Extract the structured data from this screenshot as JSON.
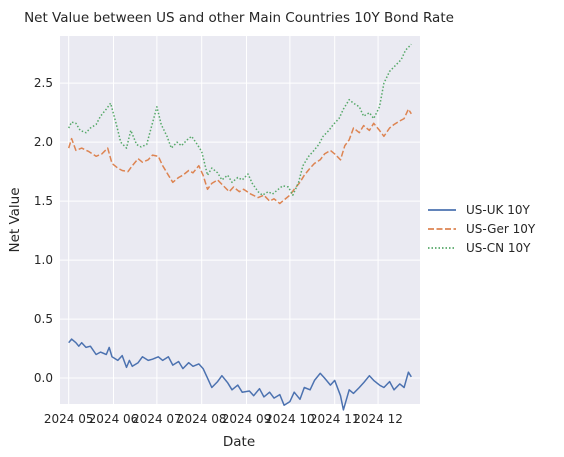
{
  "chart_data": {
    "type": "line",
    "title": "Net Value between US and other Main Countries 10Y Bond Rate",
    "xlabel": "Date",
    "ylabel": "Net Value",
    "x_tick_labels": [
      "2024 05",
      "2024 06",
      "2024 07",
      "2024 08",
      "2024 09",
      "2024 10",
      "2024 11",
      "2024 12"
    ],
    "x_tick_dates": [
      "2024-05-01",
      "2024-06-01",
      "2024-07-01",
      "2024-08-01",
      "2024-09-01",
      "2024-10-01",
      "2024-11-01",
      "2024-12-01"
    ],
    "y_tick_labels": [
      "0.0",
      "0.5",
      "1.0",
      "1.5",
      "2.0",
      "2.5"
    ],
    "y_ticks": [
      0.0,
      0.5,
      1.0,
      1.5,
      2.0,
      2.5
    ],
    "xlim": [
      "2024-04-25",
      "2024-12-30"
    ],
    "ylim": [
      -0.22,
      2.9
    ],
    "grid": true,
    "legend_position": "right",
    "background": "#eaeaf2",
    "series": [
      {
        "name": "US-UK 10Y",
        "color": "#4c72b0",
        "dash": "solid",
        "points": [
          [
            "2024-05-01",
            0.3
          ],
          [
            "2024-05-03",
            0.33
          ],
          [
            "2024-05-06",
            0.3
          ],
          [
            "2024-05-08",
            0.27
          ],
          [
            "2024-05-10",
            0.3
          ],
          [
            "2024-05-13",
            0.26
          ],
          [
            "2024-05-16",
            0.27
          ],
          [
            "2024-05-20",
            0.2
          ],
          [
            "2024-05-23",
            0.22
          ],
          [
            "2024-05-27",
            0.2
          ],
          [
            "2024-05-29",
            0.26
          ],
          [
            "2024-05-31",
            0.18
          ],
          [
            "2024-06-04",
            0.15
          ],
          [
            "2024-06-07",
            0.19
          ],
          [
            "2024-06-10",
            0.09
          ],
          [
            "2024-06-12",
            0.15
          ],
          [
            "2024-06-14",
            0.1
          ],
          [
            "2024-06-18",
            0.13
          ],
          [
            "2024-06-21",
            0.18
          ],
          [
            "2024-06-25",
            0.15
          ],
          [
            "2024-06-28",
            0.16
          ],
          [
            "2024-07-02",
            0.18
          ],
          [
            "2024-07-05",
            0.15
          ],
          [
            "2024-07-09",
            0.18
          ],
          [
            "2024-07-12",
            0.11
          ],
          [
            "2024-07-16",
            0.14
          ],
          [
            "2024-07-19",
            0.08
          ],
          [
            "2024-07-23",
            0.13
          ],
          [
            "2024-07-26",
            0.1
          ],
          [
            "2024-07-30",
            0.12
          ],
          [
            "2024-08-02",
            0.08
          ],
          [
            "2024-08-05",
            0.0
          ],
          [
            "2024-08-08",
            -0.08
          ],
          [
            "2024-08-12",
            -0.03
          ],
          [
            "2024-08-15",
            0.02
          ],
          [
            "2024-08-19",
            -0.04
          ],
          [
            "2024-08-22",
            -0.1
          ],
          [
            "2024-08-26",
            -0.06
          ],
          [
            "2024-08-29",
            -0.12
          ],
          [
            "2024-09-03",
            -0.11
          ],
          [
            "2024-09-06",
            -0.15
          ],
          [
            "2024-09-10",
            -0.09
          ],
          [
            "2024-09-13",
            -0.16
          ],
          [
            "2024-09-17",
            -0.12
          ],
          [
            "2024-09-20",
            -0.17
          ],
          [
            "2024-09-24",
            -0.14
          ],
          [
            "2024-09-27",
            -0.23
          ],
          [
            "2024-10-01",
            -0.2
          ],
          [
            "2024-10-04",
            -0.12
          ],
          [
            "2024-10-08",
            -0.18
          ],
          [
            "2024-10-11",
            -0.08
          ],
          [
            "2024-10-15",
            -0.1
          ],
          [
            "2024-10-18",
            -0.02
          ],
          [
            "2024-10-22",
            0.04
          ],
          [
            "2024-10-25",
            0.0
          ],
          [
            "2024-10-29",
            -0.06
          ],
          [
            "2024-11-01",
            -0.02
          ],
          [
            "2024-11-05",
            -0.15
          ],
          [
            "2024-11-07",
            -0.27
          ],
          [
            "2024-11-11",
            -0.1
          ],
          [
            "2024-11-14",
            -0.13
          ],
          [
            "2024-11-18",
            -0.08
          ],
          [
            "2024-11-21",
            -0.04
          ],
          [
            "2024-11-25",
            0.02
          ],
          [
            "2024-11-28",
            -0.02
          ],
          [
            "2024-12-02",
            -0.06
          ],
          [
            "2024-12-05",
            -0.08
          ],
          [
            "2024-12-09",
            -0.03
          ],
          [
            "2024-12-12",
            -0.1
          ],
          [
            "2024-12-16",
            -0.05
          ],
          [
            "2024-12-19",
            -0.08
          ],
          [
            "2024-12-22",
            0.05
          ],
          [
            "2024-12-24",
            0.01
          ]
        ]
      },
      {
        "name": "US-Ger 10Y",
        "color": "#dd8452",
        "dash": "dashed",
        "points": [
          [
            "2024-05-01",
            1.95
          ],
          [
            "2024-05-03",
            2.03
          ],
          [
            "2024-05-06",
            1.93
          ],
          [
            "2024-05-10",
            1.95
          ],
          [
            "2024-05-15",
            1.92
          ],
          [
            "2024-05-20",
            1.88
          ],
          [
            "2024-05-24",
            1.9
          ],
          [
            "2024-05-28",
            1.95
          ],
          [
            "2024-05-31",
            1.82
          ],
          [
            "2024-06-04",
            1.78
          ],
          [
            "2024-06-07",
            1.76
          ],
          [
            "2024-06-11",
            1.75
          ],
          [
            "2024-06-14",
            1.8
          ],
          [
            "2024-06-18",
            1.86
          ],
          [
            "2024-06-21",
            1.83
          ],
          [
            "2024-06-25",
            1.85
          ],
          [
            "2024-06-28",
            1.89
          ],
          [
            "2024-07-02",
            1.88
          ],
          [
            "2024-07-05",
            1.8
          ],
          [
            "2024-07-09",
            1.72
          ],
          [
            "2024-07-12",
            1.66
          ],
          [
            "2024-07-16",
            1.7
          ],
          [
            "2024-07-19",
            1.72
          ],
          [
            "2024-07-23",
            1.76
          ],
          [
            "2024-07-26",
            1.74
          ],
          [
            "2024-07-30",
            1.8
          ],
          [
            "2024-08-02",
            1.72
          ],
          [
            "2024-08-05",
            1.6
          ],
          [
            "2024-08-08",
            1.65
          ],
          [
            "2024-08-12",
            1.68
          ],
          [
            "2024-08-16",
            1.63
          ],
          [
            "2024-08-20",
            1.58
          ],
          [
            "2024-08-23",
            1.62
          ],
          [
            "2024-08-27",
            1.58
          ],
          [
            "2024-08-30",
            1.6
          ],
          [
            "2024-09-04",
            1.56
          ],
          [
            "2024-09-09",
            1.53
          ],
          [
            "2024-09-13",
            1.55
          ],
          [
            "2024-09-17",
            1.5
          ],
          [
            "2024-09-20",
            1.52
          ],
          [
            "2024-09-24",
            1.48
          ],
          [
            "2024-09-27",
            1.51
          ],
          [
            "2024-10-01",
            1.55
          ],
          [
            "2024-10-04",
            1.6
          ],
          [
            "2024-10-08",
            1.66
          ],
          [
            "2024-10-11",
            1.72
          ],
          [
            "2024-10-15",
            1.78
          ],
          [
            "2024-10-18",
            1.82
          ],
          [
            "2024-10-22",
            1.85
          ],
          [
            "2024-10-25",
            1.9
          ],
          [
            "2024-10-29",
            1.93
          ],
          [
            "2024-11-01",
            1.9
          ],
          [
            "2024-11-05",
            1.85
          ],
          [
            "2024-11-08",
            1.97
          ],
          [
            "2024-11-11",
            2.02
          ],
          [
            "2024-11-14",
            2.12
          ],
          [
            "2024-11-18",
            2.08
          ],
          [
            "2024-11-21",
            2.14
          ],
          [
            "2024-11-25",
            2.1
          ],
          [
            "2024-11-28",
            2.16
          ],
          [
            "2024-12-02",
            2.1
          ],
          [
            "2024-12-05",
            2.05
          ],
          [
            "2024-12-09",
            2.12
          ],
          [
            "2024-12-12",
            2.15
          ],
          [
            "2024-12-16",
            2.18
          ],
          [
            "2024-12-19",
            2.2
          ],
          [
            "2024-12-22",
            2.28
          ],
          [
            "2024-12-24",
            2.24
          ]
        ]
      },
      {
        "name": "US-CN 10Y",
        "color": "#55a868",
        "dash": "dotted",
        "points": [
          [
            "2024-05-01",
            2.12
          ],
          [
            "2024-05-03",
            2.17
          ],
          [
            "2024-05-06",
            2.16
          ],
          [
            "2024-05-09",
            2.1
          ],
          [
            "2024-05-13",
            2.08
          ],
          [
            "2024-05-16",
            2.12
          ],
          [
            "2024-05-20",
            2.15
          ],
          [
            "2024-05-23",
            2.22
          ],
          [
            "2024-05-27",
            2.28
          ],
          [
            "2024-05-30",
            2.33
          ],
          [
            "2024-06-03",
            2.15
          ],
          [
            "2024-06-06",
            2.0
          ],
          [
            "2024-06-10",
            1.95
          ],
          [
            "2024-06-13",
            2.1
          ],
          [
            "2024-06-17",
            1.98
          ],
          [
            "2024-06-20",
            1.96
          ],
          [
            "2024-06-24",
            1.98
          ],
          [
            "2024-06-27",
            2.12
          ],
          [
            "2024-07-01",
            2.3
          ],
          [
            "2024-07-04",
            2.15
          ],
          [
            "2024-07-08",
            2.05
          ],
          [
            "2024-07-11",
            1.95
          ],
          [
            "2024-07-15",
            2.0
          ],
          [
            "2024-07-18",
            1.97
          ],
          [
            "2024-07-22",
            2.02
          ],
          [
            "2024-07-25",
            2.05
          ],
          [
            "2024-07-29",
            1.98
          ],
          [
            "2024-08-01",
            1.92
          ],
          [
            "2024-08-05",
            1.72
          ],
          [
            "2024-08-08",
            1.78
          ],
          [
            "2024-08-12",
            1.74
          ],
          [
            "2024-08-15",
            1.68
          ],
          [
            "2024-08-19",
            1.72
          ],
          [
            "2024-08-22",
            1.66
          ],
          [
            "2024-08-26",
            1.7
          ],
          [
            "2024-08-29",
            1.68
          ],
          [
            "2024-09-02",
            1.73
          ],
          [
            "2024-09-05",
            1.65
          ],
          [
            "2024-09-09",
            1.58
          ],
          [
            "2024-09-12",
            1.55
          ],
          [
            "2024-09-16",
            1.58
          ],
          [
            "2024-09-19",
            1.56
          ],
          [
            "2024-09-23",
            1.6
          ],
          [
            "2024-09-26",
            1.63
          ],
          [
            "2024-09-30",
            1.62
          ],
          [
            "2024-10-03",
            1.55
          ],
          [
            "2024-10-07",
            1.66
          ],
          [
            "2024-10-10",
            1.8
          ],
          [
            "2024-10-14",
            1.88
          ],
          [
            "2024-10-17",
            1.92
          ],
          [
            "2024-10-21",
            1.98
          ],
          [
            "2024-10-24",
            2.05
          ],
          [
            "2024-10-28",
            2.1
          ],
          [
            "2024-10-31",
            2.15
          ],
          [
            "2024-11-04",
            2.2
          ],
          [
            "2024-11-07",
            2.28
          ],
          [
            "2024-11-11",
            2.36
          ],
          [
            "2024-11-14",
            2.33
          ],
          [
            "2024-11-18",
            2.3
          ],
          [
            "2024-11-21",
            2.22
          ],
          [
            "2024-11-25",
            2.25
          ],
          [
            "2024-11-28",
            2.2
          ],
          [
            "2024-12-02",
            2.3
          ],
          [
            "2024-12-05",
            2.5
          ],
          [
            "2024-12-09",
            2.6
          ],
          [
            "2024-12-13",
            2.65
          ],
          [
            "2024-12-17",
            2.7
          ],
          [
            "2024-12-20",
            2.78
          ],
          [
            "2024-12-24",
            2.83
          ]
        ]
      }
    ]
  }
}
